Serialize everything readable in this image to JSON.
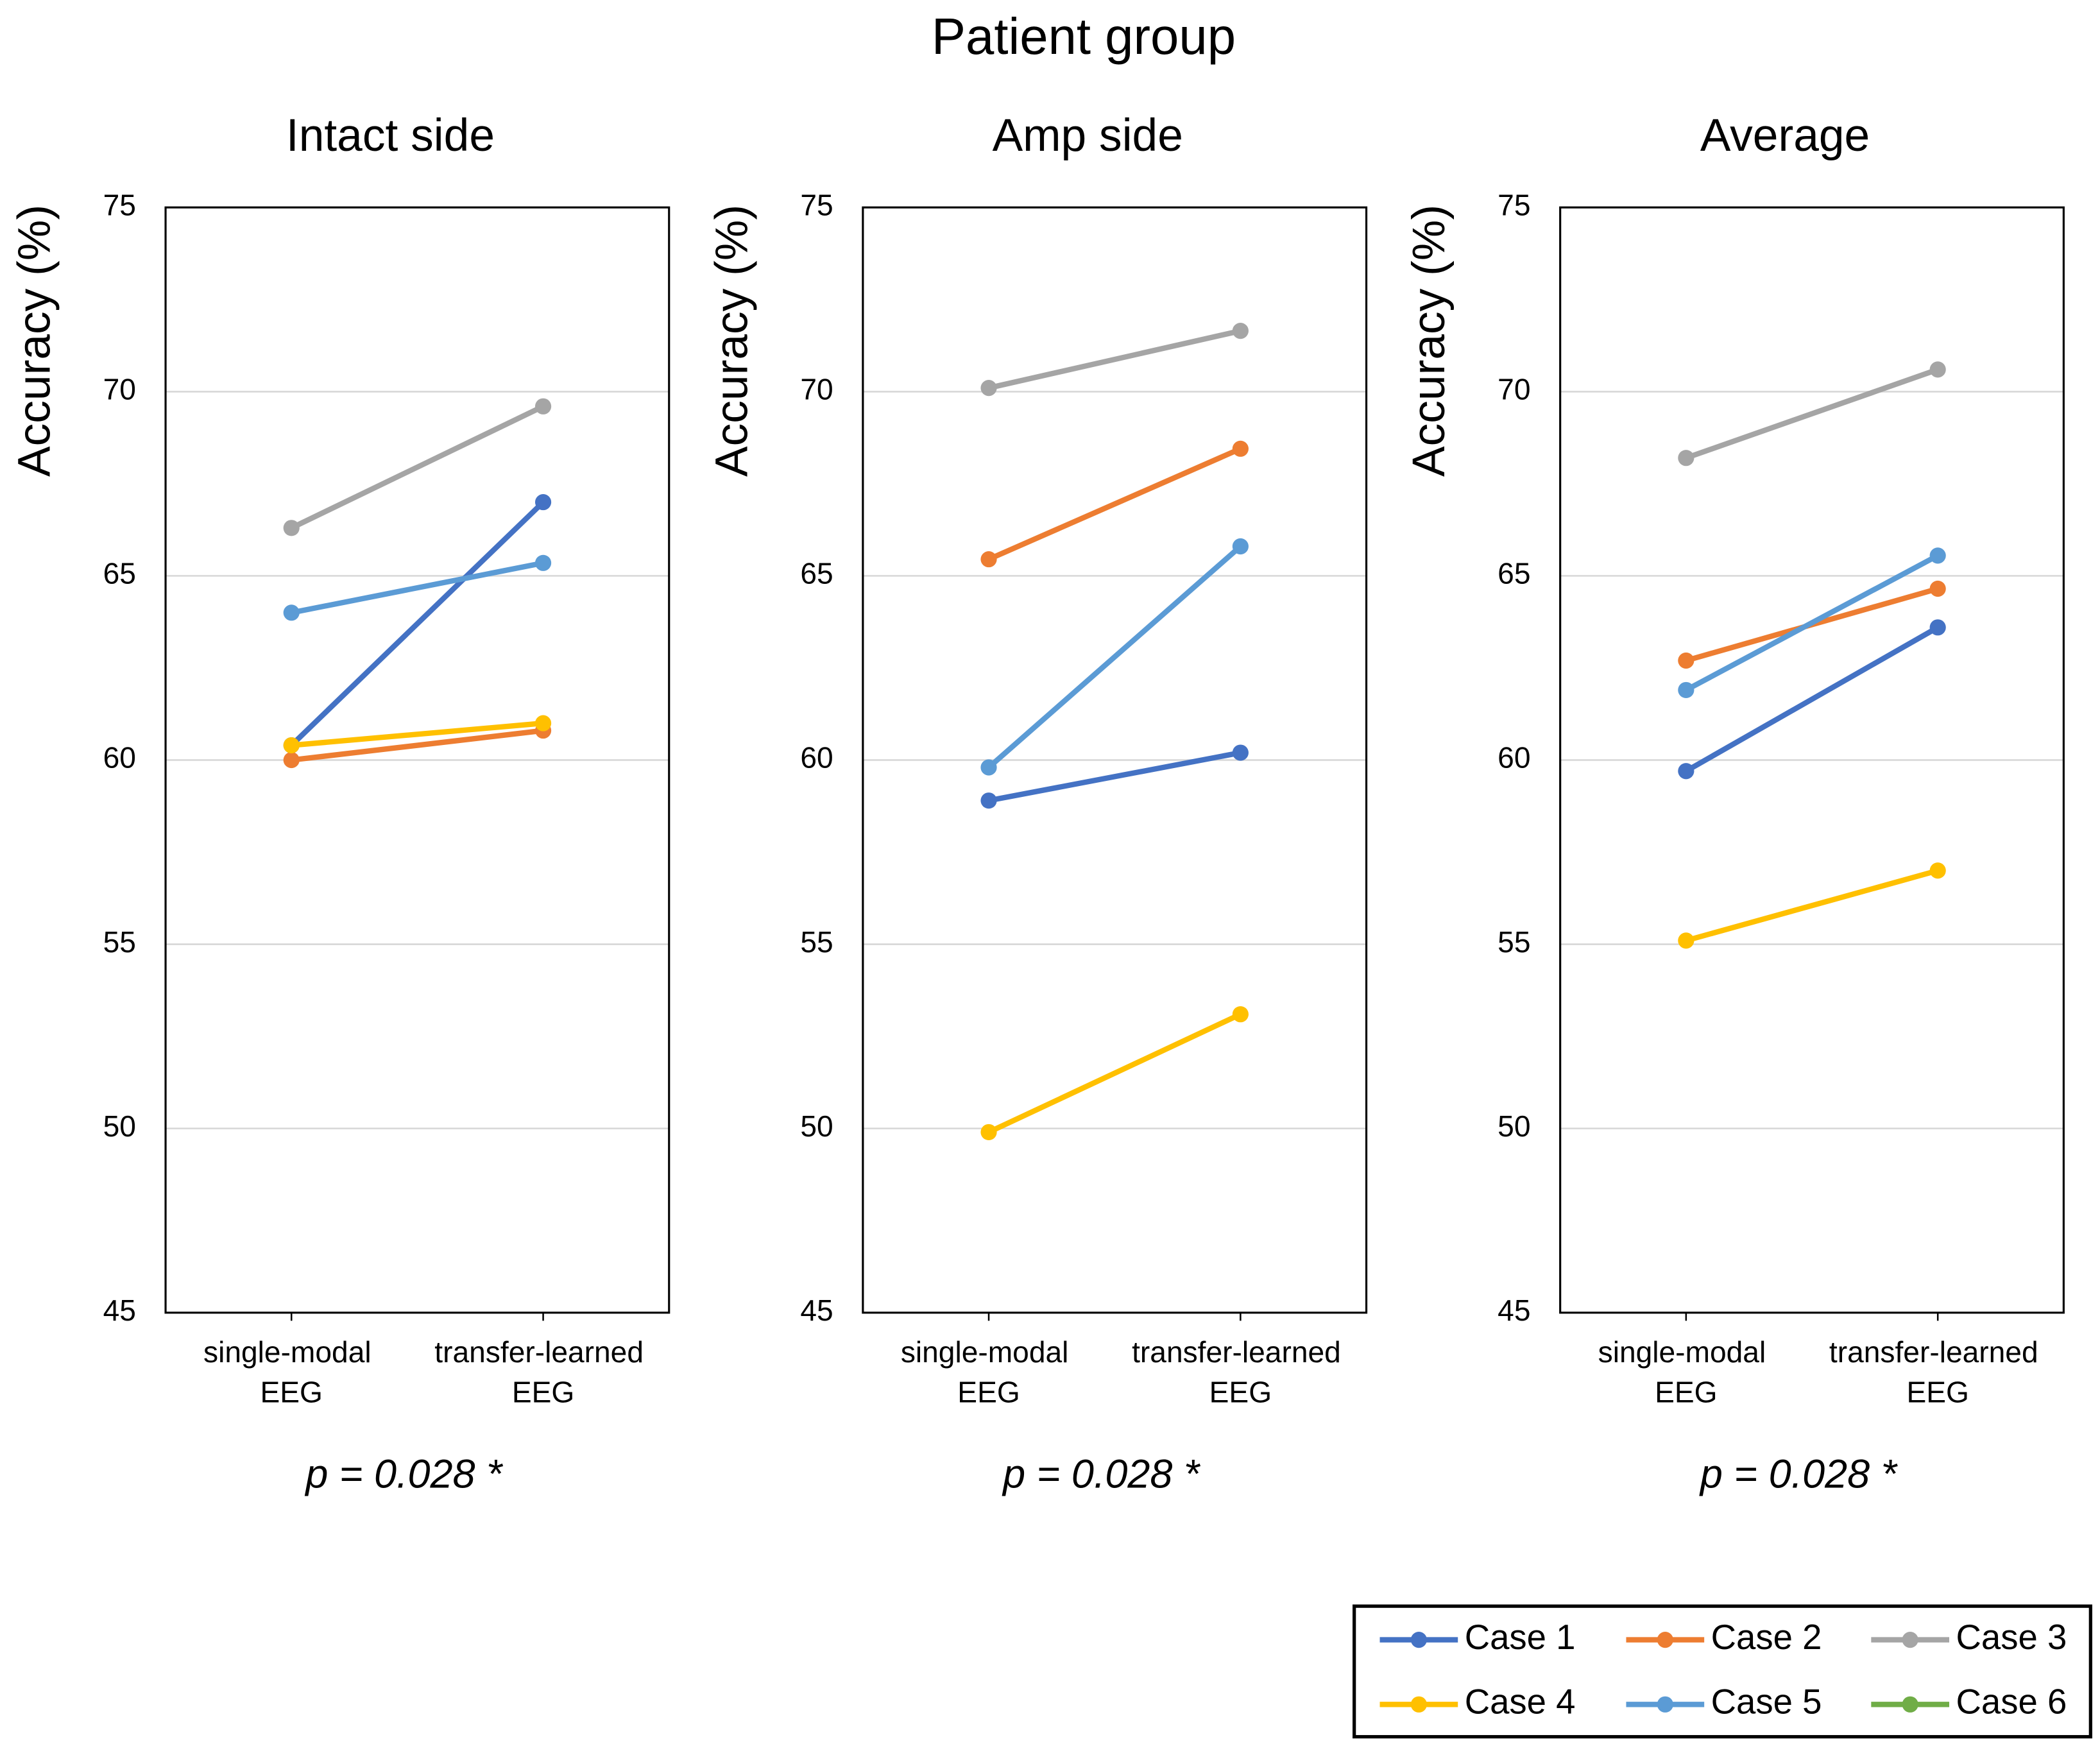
{
  "title": "Patient group",
  "legend": {
    "position": "lower right"
  },
  "cases": [
    {
      "name": "Case 1",
      "color": "#4472c4"
    },
    {
      "name": "Case 2",
      "color": "#ed7d31"
    },
    {
      "name": "Case 3",
      "color": "#a5a5a5"
    },
    {
      "name": "Case 4",
      "color": "#ffc000"
    },
    {
      "name": "Case 5",
      "color": "#5b9bd5"
    },
    {
      "name": "Case 6",
      "color": "#70ad47"
    }
  ],
  "chart_data": [
    {
      "type": "line",
      "title": "Intact side",
      "ylabel": "Accuracy (%)",
      "annotation": "p = 0.028 *",
      "categories": [
        "single-modal EEG",
        "transfer-learned EEG"
      ],
      "ylim": [
        45,
        75
      ],
      "yticks": [
        45,
        50,
        55,
        60,
        65,
        70,
        75
      ],
      "grid": true,
      "series": [
        {
          "values": [
            60.4,
            67.0
          ]
        },
        {
          "values": [
            60.0,
            60.8
          ]
        },
        {
          "values": [
            66.3,
            69.6
          ]
        },
        {
          "values": [
            60.4,
            61.0
          ]
        },
        {
          "values": [
            64.0,
            65.35
          ]
        },
        {
          "values": [
            null,
            null
          ]
        }
      ]
    },
    {
      "type": "line",
      "title": "Amp side",
      "ylabel": "Accuracy (%)",
      "annotation": "p = 0.028 *",
      "categories": [
        "single-modal EEG",
        "transfer-learned EEG"
      ],
      "ylim": [
        45,
        75
      ],
      "yticks": [
        45,
        50,
        55,
        60,
        65,
        70,
        75
      ],
      "grid": true,
      "series": [
        {
          "values": [
            58.9,
            60.2
          ]
        },
        {
          "values": [
            65.45,
            68.45
          ]
        },
        {
          "values": [
            70.1,
            71.65
          ]
        },
        {
          "values": [
            49.9,
            53.1
          ]
        },
        {
          "values": [
            59.8,
            65.8
          ]
        },
        {
          "values": [
            null,
            null
          ]
        }
      ]
    },
    {
      "type": "line",
      "title": "Average",
      "ylabel": "Accuracy (%)",
      "annotation": "p = 0.028 *",
      "categories": [
        "single-modal EEG",
        "transfer-learned EEG"
      ],
      "ylim": [
        45,
        75
      ],
      "yticks": [
        45,
        50,
        55,
        60,
        65,
        70,
        75
      ],
      "grid": true,
      "series": [
        {
          "values": [
            59.7,
            63.6
          ]
        },
        {
          "values": [
            62.7,
            64.65
          ]
        },
        {
          "values": [
            68.2,
            70.6
          ]
        },
        {
          "values": [
            55.1,
            57.0
          ]
        },
        {
          "values": [
            61.9,
            65.55
          ]
        },
        {
          "values": [
            null,
            null
          ]
        }
      ]
    }
  ]
}
